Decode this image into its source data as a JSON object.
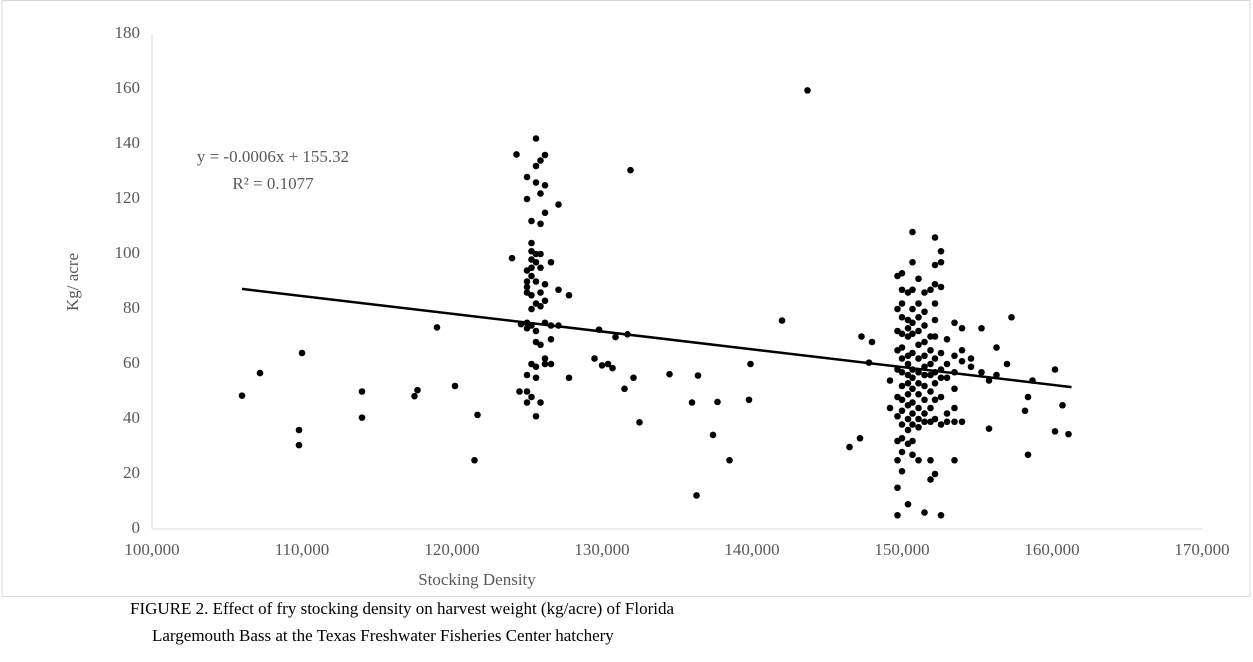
{
  "chart_data": {
    "type": "scatter",
    "x_label": "Stocking Density",
    "y_label": "Kg/ acre",
    "caption": [
      "FIGURE 2.   Effect of fry stocking density on harvest weight (kg/acre) of Florida",
      "Largemouth Bass at the Texas Freshwater Fisheries Center hatchery"
    ],
    "annotations": [
      "y = -0.0006x + 155.32",
      "R² = 0.1077"
    ],
    "color": "#000000",
    "trendline": {
      "x": [
        106000,
        161300
      ],
      "y": [
        87.3,
        51.6
      ],
      "color": "#000000"
    },
    "xlim": [
      100000,
      170000
    ],
    "ylim": [
      0,
      180
    ],
    "xticks": [
      {
        "value": 100000,
        "label": "100,000"
      },
      {
        "value": 110000,
        "label": "110,000"
      },
      {
        "value": 120000,
        "label": "120,000"
      },
      {
        "value": 130000,
        "label": "130,000"
      },
      {
        "value": 140000,
        "label": "140,000"
      },
      {
        "value": 150000,
        "label": "150,000"
      },
      {
        "value": 160000,
        "label": "160,000"
      },
      {
        "value": 170000,
        "label": "170,000"
      }
    ],
    "yticks": [
      0,
      20,
      40,
      60,
      80,
      100,
      120,
      140,
      160,
      180
    ],
    "grid": false,
    "x": [
      106000,
      107200,
      110000,
      109800,
      109800,
      114000,
      114000,
      117500,
      117700,
      119000,
      120200,
      121500,
      121700,
      124000,
      124300,
      124500,
      124600,
      125000,
      125000,
      125000,
      125000,
      125000,
      125000,
      125000,
      125000,
      125000,
      125000,
      125000,
      125300,
      125300,
      125300,
      125300,
      125300,
      125300,
      125300,
      125300,
      125300,
      125300,
      125300,
      125600,
      125600,
      125600,
      125600,
      125600,
      125600,
      125600,
      125600,
      125600,
      125600,
      125600,
      125600,
      125900,
      125900,
      125900,
      125900,
      125900,
      125900,
      125900,
      125900,
      125900,
      126200,
      126200,
      126200,
      126200,
      126200,
      126200,
      126200,
      126200,
      126600,
      126600,
      126600,
      126600,
      127100,
      127100,
      127100,
      127800,
      127800,
      129500,
      129800,
      130000,
      130400,
      130700,
      130900,
      131500,
      131700,
      131900,
      132100,
      132500,
      134500,
      136000,
      136300,
      136400,
      137400,
      137700,
      138500,
      139800,
      139900,
      142000,
      143700,
      146500,
      147200,
      147300,
      147800,
      148000,
      149200,
      149200,
      149700,
      149700,
      149700,
      149700,
      149700,
      149700,
      149700,
      149700,
      149700,
      149700,
      149700,
      150000,
      150000,
      150000,
      150000,
      150000,
      150000,
      150000,
      150000,
      150000,
      150000,
      150000,
      150000,
      150000,
      150000,
      150000,
      150400,
      150400,
      150400,
      150400,
      150400,
      150400,
      150400,
      150400,
      150400,
      150400,
      150400,
      150400,
      150400,
      150400,
      150700,
      150700,
      150700,
      150700,
      150700,
      150700,
      150700,
      150700,
      150700,
      150700,
      150700,
      150700,
      150700,
      150700,
      150700,
      151100,
      151100,
      151100,
      151100,
      151100,
      151100,
      151100,
      151100,
      151100,
      151100,
      151100,
      151100,
      151100,
      151500,
      151500,
      151500,
      151500,
      151500,
      151500,
      151500,
      151500,
      151500,
      151500,
      151500,
      151500,
      151900,
      151900,
      151900,
      151900,
      151900,
      151900,
      151900,
      151900,
      151900,
      151900,
      152200,
      152200,
      152200,
      152200,
      152200,
      152200,
      152200,
      152200,
      152200,
      152200,
      152200,
      152200,
      152600,
      152600,
      152600,
      152600,
      152600,
      152600,
      152600,
      152600,
      152600,
      153000,
      153000,
      153000,
      153000,
      153000,
      153500,
      153500,
      153500,
      153500,
      153500,
      153500,
      153500,
      154000,
      154000,
      154000,
      154000,
      154600,
      154600,
      155300,
      155300,
      155800,
      155800,
      156300,
      156300,
      157000,
      157300,
      158200,
      158400,
      158400,
      158700,
      160200,
      160200,
      160700,
      161100
    ],
    "values": [
      48.5,
      56.7,
      64,
      36,
      30.5,
      50,
      40.5,
      48.3,
      50.5,
      73.3,
      52,
      25,
      41.5,
      98.5,
      136.2,
      50,
      74.5,
      128,
      120,
      94,
      90,
      88,
      86,
      75,
      73,
      56,
      50,
      46,
      112,
      104,
      101,
      98,
      95,
      92,
      85,
      80,
      74,
      60,
      48,
      142,
      132,
      126,
      100,
      97,
      90,
      82,
      72,
      68,
      59,
      55,
      41,
      134,
      122,
      111,
      100,
      95,
      86,
      81,
      67,
      46,
      136,
      125,
      115,
      89,
      83,
      75,
      62,
      60,
      97,
      74,
      69,
      60,
      118,
      87,
      74,
      85,
      55,
      62,
      72.5,
      59.5,
      60,
      58.5,
      69.8,
      51,
      70.8,
      130.5,
      55,
      38.8,
      56.3,
      46,
      12.2,
      55.8,
      34.2,
      46.2,
      25,
      47,
      60,
      75.8,
      159.5,
      29.8,
      33,
      70,
      60.5,
      68,
      44,
      54,
      5,
      15,
      25,
      32,
      41,
      48,
      58,
      65,
      72,
      80,
      92,
      93,
      87,
      82,
      77,
      71,
      66,
      62,
      57,
      52,
      47,
      43,
      38,
      33,
      28,
      21,
      86,
      76,
      73,
      70,
      63,
      60,
      56,
      53,
      49,
      45,
      40,
      36,
      31,
      9,
      108,
      97,
      87,
      80,
      75,
      71,
      64,
      58,
      55,
      51,
      46,
      42,
      38,
      32,
      27,
      91,
      82,
      77,
      72,
      67,
      62,
      57,
      53,
      49,
      44,
      40,
      37,
      25,
      86,
      79,
      74,
      68,
      63,
      59,
      56,
      52,
      47,
      42,
      39,
      6,
      87,
      70,
      65,
      60,
      56,
      50,
      44,
      39,
      25,
      18,
      106,
      96,
      89,
      82,
      76,
      70,
      62,
      57,
      53,
      47,
      40,
      20,
      101,
      97,
      88,
      64,
      58,
      55,
      48,
      38,
      5,
      69,
      60,
      55,
      42,
      39,
      75,
      63,
      57,
      51,
      44,
      39,
      25,
      73,
      65,
      61,
      39,
      62,
      59,
      73,
      57,
      54,
      36.5,
      66,
      56,
      60,
      77,
      43,
      48,
      27,
      54,
      35.5,
      58,
      45,
      34.5
    ]
  }
}
